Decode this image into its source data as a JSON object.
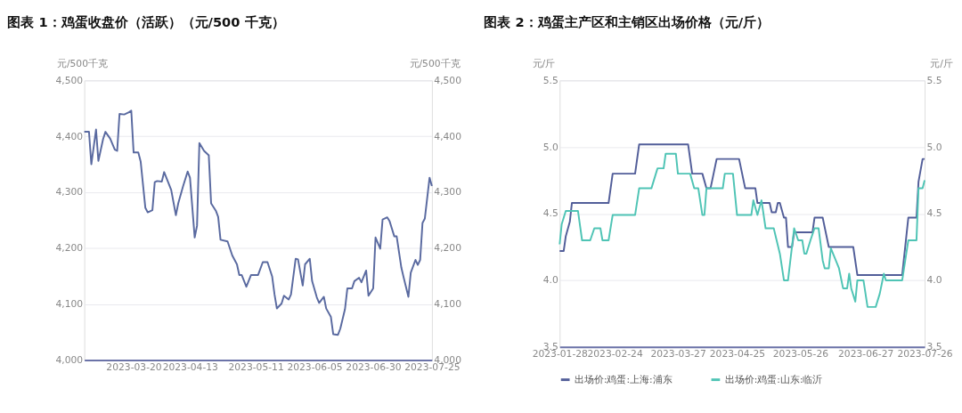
{
  "chart_data": [
    {
      "type": "line",
      "title": "图表 1：鸡蛋收盘价（活跃）（元/500 千克）",
      "ylabel": "元/500千克",
      "y2label": "元/500千克",
      "xlim": [
        "2023-02-27",
        "2023-07-25"
      ],
      "xticks": [
        "2023-03-20",
        "2023-04-13",
        "2023-05-11",
        "2023-06-05",
        "2023-06-30",
        "2023-07-25"
      ],
      "ylim": [
        4000,
        4500
      ],
      "yticks": [
        {
          "value": 4000,
          "label": "4,000"
        },
        {
          "value": 4100,
          "label": "4,100"
        },
        {
          "value": 4200,
          "label": "4,200"
        },
        {
          "value": 4300,
          "label": "4,300"
        },
        {
          "value": 4400,
          "label": "4,400"
        },
        {
          "value": 4500,
          "label": "4,500"
        }
      ],
      "y2lim": [
        4000,
        4500
      ],
      "y2ticks": [
        {
          "value": 4000,
          "label": "4,000"
        },
        {
          "value": 4100,
          "label": "4,100"
        },
        {
          "value": 4200,
          "label": "4,200"
        },
        {
          "value": 4300,
          "label": "4,300"
        },
        {
          "value": 4400,
          "label": "4,400"
        },
        {
          "value": 4500,
          "label": "4,500"
        }
      ],
      "grid": "y",
      "legend": false,
      "x": [
        "2023-02-27",
        "2023-03-01",
        "2023-03-02",
        "2023-03-04",
        "2023-03-05",
        "2023-03-07",
        "2023-03-08",
        "2023-03-10",
        "2023-03-12",
        "2023-03-13",
        "2023-03-14",
        "2023-03-16",
        "2023-03-18",
        "2023-03-19",
        "2023-03-20",
        "2023-03-22",
        "2023-03-23",
        "2023-03-25",
        "2023-03-26",
        "2023-03-28",
        "2023-03-29",
        "2023-03-30",
        "2023-04-01",
        "2023-04-02",
        "2023-04-05",
        "2023-04-07",
        "2023-04-08",
        "2023-04-10",
        "2023-04-12",
        "2023-04-13",
        "2023-04-15",
        "2023-04-16",
        "2023-04-17",
        "2023-04-19",
        "2023-04-21",
        "2023-04-22",
        "2023-04-24",
        "2023-04-25",
        "2023-04-26",
        "2023-04-29",
        "2023-05-01",
        "2023-05-03",
        "2023-05-04",
        "2023-05-05",
        "2023-05-07",
        "2023-05-09",
        "2023-05-12",
        "2023-05-14",
        "2023-05-16",
        "2023-05-18",
        "2023-05-19",
        "2023-05-20",
        "2023-05-22",
        "2023-05-23",
        "2023-05-25",
        "2023-05-26",
        "2023-05-28",
        "2023-05-29",
        "2023-05-31",
        "2023-06-01",
        "2023-06-03",
        "2023-06-04",
        "2023-06-06",
        "2023-06-07",
        "2023-06-09",
        "2023-06-10",
        "2023-06-12",
        "2023-06-13",
        "2023-06-15",
        "2023-06-16",
        "2023-06-18",
        "2023-06-19",
        "2023-06-21",
        "2023-06-22",
        "2023-06-24",
        "2023-06-25",
        "2023-06-27",
        "2023-06-28",
        "2023-06-30",
        "2023-07-01",
        "2023-07-03",
        "2023-07-04",
        "2023-07-06",
        "2023-07-07",
        "2023-07-09",
        "2023-07-10",
        "2023-07-12",
        "2023-07-13",
        "2023-07-15",
        "2023-07-16",
        "2023-07-18",
        "2023-07-19",
        "2023-07-20",
        "2023-07-21",
        "2023-07-22",
        "2023-07-24",
        "2023-07-25"
      ],
      "series": [
        {
          "color": "#5a6aa0",
          "values": [
            4408,
            4408,
            4350,
            4412,
            4356,
            4395,
            4408,
            4396,
            4376,
            4374,
            4440,
            4439,
            4443,
            4446,
            4371,
            4371,
            4355,
            4272,
            4264,
            4268,
            4318,
            4320,
            4319,
            4336,
            4304,
            4259,
            4280,
            4310,
            4337,
            4326,
            4219,
            4240,
            4388,
            4374,
            4366,
            4280,
            4267,
            4256,
            4215,
            4212,
            4187,
            4171,
            4152,
            4152,
            4131,
            4152,
            4152,
            4175,
            4175,
            4149,
            4117,
            4092,
            4101,
            4115,
            4108,
            4117,
            4181,
            4180,
            4133,
            4171,
            4181,
            4141,
            4112,
            4102,
            4113,
            4092,
            4077,
            4046,
            4045,
            4056,
            4091,
            4128,
            4128,
            4141,
            4147,
            4139,
            4160,
            4115,
            4128,
            4219,
            4199,
            4251,
            4255,
            4248,
            4221,
            4221,
            4165,
            4147,
            4113,
            4156,
            4179,
            4170,
            4179,
            4245,
            4253,
            4326,
            4311
          ]
        }
      ]
    },
    {
      "type": "line",
      "title": "图表 2：鸡蛋主产区和主销区出场价格（元/斤）",
      "ylabel": "元/斤",
      "y2label": "元/斤",
      "xlim": [
        "2023-01-28",
        "2023-07-26"
      ],
      "xticks": [
        "2023-01-28",
        "2023-02-24",
        "2023-03-27",
        "2023-04-25",
        "2023-05-26",
        "2023-06-27",
        "2023-07-26"
      ],
      "ylim": [
        3.5,
        5.5
      ],
      "yticks": [
        {
          "value": 3.5,
          "label": "3.5"
        },
        {
          "value": 4,
          "label": "4.0"
        },
        {
          "value": 4.5,
          "label": "4.5"
        },
        {
          "value": 5,
          "label": "5.0"
        },
        {
          "value": 5.5,
          "label": "5.5"
        }
      ],
      "y2lim": [
        3.5,
        5.5
      ],
      "y2ticks": [
        {
          "value": 3.5,
          "label": "3.5"
        },
        {
          "value": 4,
          "label": "4.0"
        },
        {
          "value": 4.5,
          "label": "4.5"
        },
        {
          "value": 5,
          "label": "5.0"
        },
        {
          "value": 5.5,
          "label": "5.5"
        }
      ],
      "grid": "y",
      "legend": "bottom",
      "series": [
        {
          "name": "出场价:鸡蛋:上海:浦东",
          "color": "#525e99",
          "x": [
            "2023-01-28",
            "2023-01-30",
            "2023-01-31",
            "2023-02-02",
            "2023-02-03",
            "2023-02-21",
            "2023-02-23",
            "2023-03-06",
            "2023-03-08",
            "2023-04-01",
            "2023-04-03",
            "2023-04-08",
            "2023-04-10",
            "2023-04-12",
            "2023-04-15",
            "2023-04-26",
            "2023-04-29",
            "2023-05-04",
            "2023-05-05",
            "2023-05-11",
            "2023-05-12",
            "2023-05-14",
            "2023-05-15",
            "2023-05-16",
            "2023-05-18",
            "2023-05-19",
            "2023-05-20",
            "2023-05-22",
            "2023-05-23",
            "2023-06-01",
            "2023-06-02",
            "2023-06-06",
            "2023-06-09",
            "2023-06-21",
            "2023-06-23",
            "2023-07-15",
            "2023-07-18",
            "2023-07-22",
            "2023-07-23",
            "2023-07-25",
            "2023-07-26"
          ],
          "values": [
            4.22,
            4.22,
            4.33,
            4.44,
            4.58,
            4.58,
            4.8,
            4.8,
            5.02,
            5.02,
            4.8,
            4.8,
            4.69,
            4.69,
            4.91,
            4.91,
            4.69,
            4.69,
            4.58,
            4.58,
            4.51,
            4.51,
            4.58,
            4.58,
            4.47,
            4.47,
            4.25,
            4.25,
            4.36,
            4.36,
            4.47,
            4.47,
            4.25,
            4.25,
            4.04,
            4.04,
            4.47,
            4.47,
            4.74,
            4.91,
            4.91
          ]
        },
        {
          "name": "出场价:鸡蛋:山东:临沂",
          "color": "#4fc4b5",
          "x": [
            "2023-01-28",
            "2023-01-29",
            "2023-01-31",
            "2023-02-06",
            "2023-02-08",
            "2023-02-12",
            "2023-02-14",
            "2023-02-17",
            "2023-02-18",
            "2023-02-21",
            "2023-02-23",
            "2023-03-06",
            "2023-03-08",
            "2023-03-14",
            "2023-03-17",
            "2023-03-20",
            "2023-03-21",
            "2023-03-26",
            "2023-03-27",
            "2023-04-02",
            "2023-04-04",
            "2023-04-06",
            "2023-04-08",
            "2023-04-09",
            "2023-04-10",
            "2023-04-18",
            "2023-04-19",
            "2023-04-23",
            "2023-04-25",
            "2023-05-02",
            "2023-05-03",
            "2023-05-05",
            "2023-05-07",
            "2023-05-09",
            "2023-05-13",
            "2023-05-16",
            "2023-05-18",
            "2023-05-20",
            "2023-05-23",
            "2023-05-25",
            "2023-05-27",
            "2023-05-28",
            "2023-05-29",
            "2023-05-31",
            "2023-06-02",
            "2023-06-04",
            "2023-06-06",
            "2023-06-07",
            "2023-06-09",
            "2023-06-10",
            "2023-06-14",
            "2023-06-16",
            "2023-06-18",
            "2023-06-19",
            "2023-06-20",
            "2023-06-22",
            "2023-06-23",
            "2023-06-26",
            "2023-06-28",
            "2023-07-02",
            "2023-07-04",
            "2023-07-06",
            "2023-07-07",
            "2023-07-15",
            "2023-07-17",
            "2023-07-18",
            "2023-07-22",
            "2023-07-23",
            "2023-07-25",
            "2023-07-26"
          ],
          "values": [
            4.27,
            4.42,
            4.52,
            4.52,
            4.3,
            4.3,
            4.39,
            4.39,
            4.3,
            4.3,
            4.49,
            4.49,
            4.69,
            4.69,
            4.84,
            4.84,
            4.95,
            4.95,
            4.8,
            4.8,
            4.69,
            4.69,
            4.49,
            4.49,
            4.69,
            4.69,
            4.8,
            4.8,
            4.49,
            4.49,
            4.6,
            4.49,
            4.6,
            4.39,
            4.39,
            4.2,
            4.0,
            4.0,
            4.39,
            4.3,
            4.3,
            4.2,
            4.2,
            4.3,
            4.39,
            4.39,
            4.15,
            4.09,
            4.09,
            4.24,
            4.09,
            3.94,
            3.94,
            4.05,
            3.94,
            3.84,
            4.0,
            4.0,
            3.8,
            3.8,
            3.9,
            4.05,
            4.0,
            4.0,
            4.2,
            4.3,
            4.3,
            4.69,
            4.69,
            4.75
          ]
        }
      ]
    }
  ]
}
